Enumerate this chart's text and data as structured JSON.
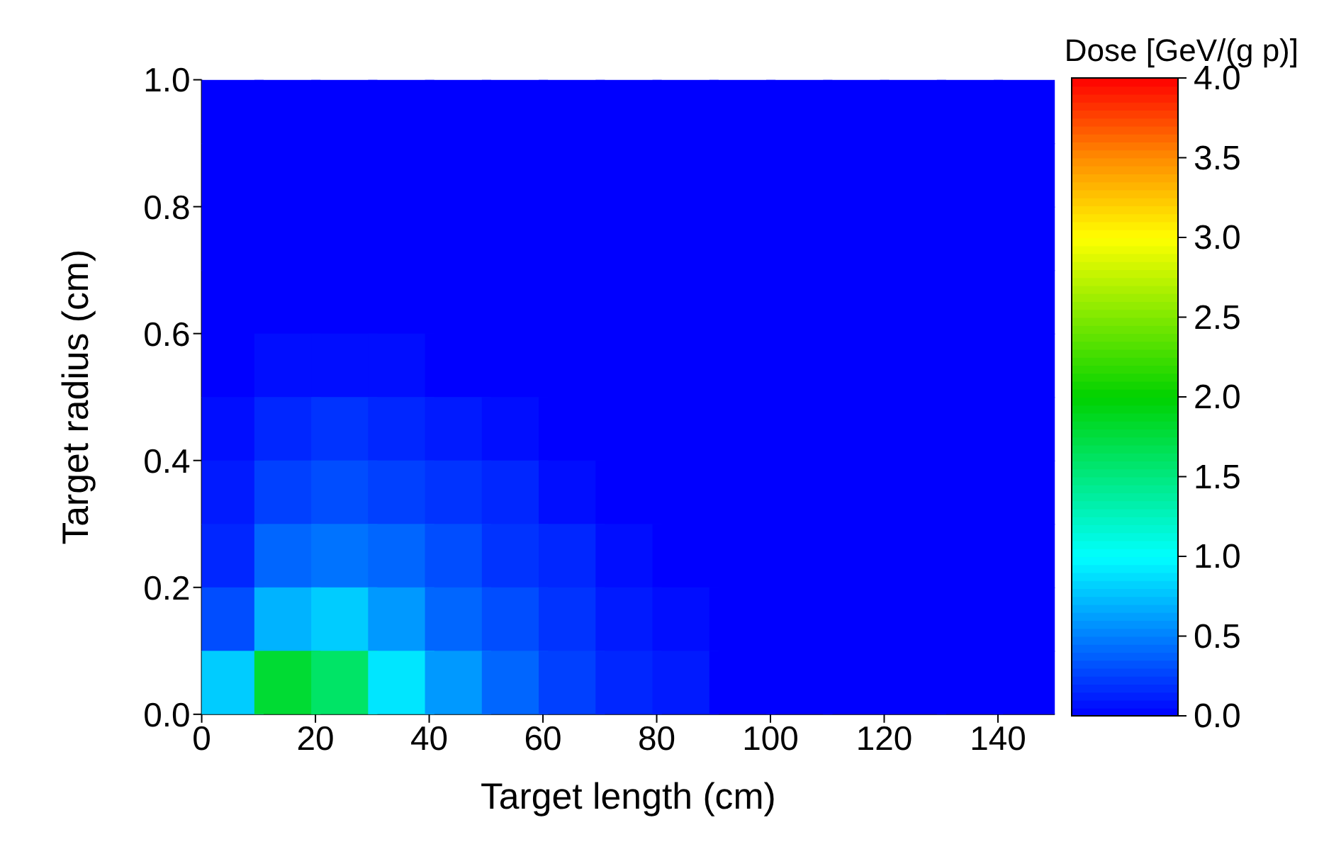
{
  "chart_data": {
    "type": "heatmap",
    "xlabel": "Target length (cm)",
    "ylabel": "Target radius (cm)",
    "clabel": "Dose [GeV/(g p)]",
    "xlim": [
      0,
      150
    ],
    "xticks": [
      0,
      20,
      40,
      60,
      80,
      100,
      120,
      140
    ],
    "ylim": [
      0,
      1
    ],
    "yticks": [
      {
        "value": 0,
        "label": "0.0"
      },
      {
        "value": 0.2,
        "label": "0.2"
      },
      {
        "value": 0.4,
        "label": "0.4"
      },
      {
        "value": 0.6,
        "label": "0.6"
      },
      {
        "value": 0.8,
        "label": "0.8"
      },
      {
        "value": 1,
        "label": "1.0"
      }
    ],
    "clim": [
      0,
      4
    ],
    "cticks": [
      {
        "value": 0,
        "label": "0.0"
      },
      {
        "value": 0.5,
        "label": "0.5"
      },
      {
        "value": 1,
        "label": "1.0"
      },
      {
        "value": 1.5,
        "label": "1.5"
      },
      {
        "value": 2,
        "label": "2.0"
      },
      {
        "value": 2.5,
        "label": "2.5"
      },
      {
        "value": 3,
        "label": "3.0"
      },
      {
        "value": 3.5,
        "label": "3.5"
      },
      {
        "value": 4,
        "label": "4.0"
      }
    ],
    "cells": [
      [
        0,
        0,
        0,
        0,
        0,
        0,
        0,
        0,
        0,
        0,
        0,
        0,
        0,
        0,
        0
      ],
      [
        0,
        0,
        0,
        0,
        0,
        0,
        0,
        0,
        0,
        0,
        0,
        0,
        0,
        0,
        0
      ],
      [
        0,
        0,
        0,
        0,
        0,
        0,
        0,
        0,
        0,
        0,
        0,
        0,
        0,
        0,
        0
      ],
      [
        0,
        0,
        0,
        0,
        0,
        0,
        0,
        0,
        0,
        0,
        0,
        0,
        0,
        0,
        0
      ],
      [
        0,
        0.05,
        0.05,
        0.05,
        0,
        0,
        0,
        0,
        0,
        0,
        0,
        0,
        0,
        0,
        0
      ],
      [
        0.05,
        0.15,
        0.2,
        0.15,
        0.1,
        0.05,
        0,
        0,
        0,
        0,
        0,
        0,
        0,
        0,
        0
      ],
      [
        0.1,
        0.25,
        0.3,
        0.25,
        0.2,
        0.15,
        0.05,
        0,
        0,
        0,
        0,
        0,
        0,
        0,
        0
      ],
      [
        0.15,
        0.4,
        0.45,
        0.4,
        0.3,
        0.2,
        0.15,
        0.05,
        0,
        0,
        0,
        0,
        0,
        0,
        0
      ],
      [
        0.3,
        0.7,
        0.8,
        0.6,
        0.4,
        0.3,
        0.2,
        0.1,
        0.05,
        0,
        0,
        0,
        0,
        0,
        0
      ],
      [
        0.8,
        1.8,
        1.6,
        0.9,
        0.6,
        0.4,
        0.25,
        0.15,
        0.1,
        0,
        0,
        0,
        0,
        0,
        0
      ]
    ]
  }
}
